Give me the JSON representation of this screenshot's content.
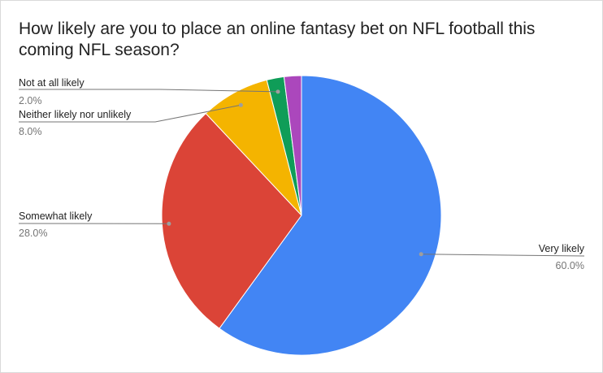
{
  "chart_data": {
    "type": "pie",
    "title": "How likely are you to place an online fantasy bet on NFL football this coming NFL season?",
    "slices": [
      {
        "label": "Very likely",
        "value": 60.0,
        "percent_label": "60.0%",
        "color": "#4285f4"
      },
      {
        "label": "Somewhat likely",
        "value": 28.0,
        "percent_label": "28.0%",
        "color": "#db4437"
      },
      {
        "label": "Neither likely nor unlikely",
        "value": 8.0,
        "percent_label": "8.0%",
        "color": "#f4b400"
      },
      {
        "label": "Not at all likely",
        "value": 2.0,
        "percent_label": "2.0%",
        "color": "#0f9d58"
      },
      {
        "label": "",
        "value": 2.0,
        "percent_label": "",
        "color": "#ab47bc"
      }
    ],
    "start_angle_deg": 0,
    "direction": "clockwise",
    "legend": "none",
    "labels": "callouts"
  }
}
